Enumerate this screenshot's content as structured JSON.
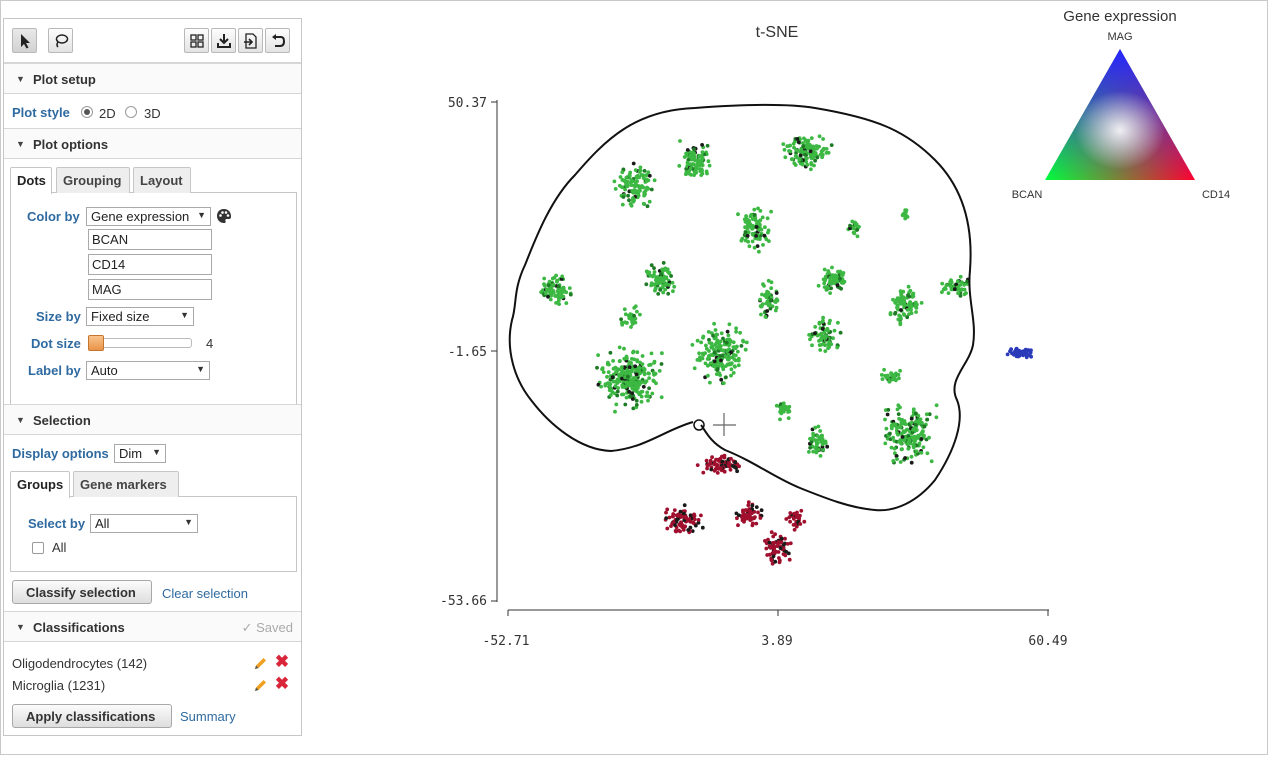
{
  "toolbar": {
    "left_tools": [
      {
        "name": "select-tool",
        "icon": "cursor-arrow-icon",
        "active": true
      },
      {
        "name": "lasso-tool",
        "icon": "lasso-icon",
        "active": false
      }
    ],
    "right_tools": [
      {
        "name": "grid-button",
        "icon": "grid-icon"
      },
      {
        "name": "download-button",
        "icon": "download-icon"
      },
      {
        "name": "export-button",
        "icon": "export-icon"
      },
      {
        "name": "undo-button",
        "icon": "undo-icon"
      }
    ]
  },
  "plot_setup": {
    "title": "Plot setup",
    "style_label": "Plot style",
    "options": [
      "2D",
      "3D"
    ],
    "selected": "2D"
  },
  "plot_options": {
    "title": "Plot options",
    "tabs": [
      "Dots",
      "Grouping",
      "Layout"
    ],
    "active_tab": "Dots",
    "color_by_label": "Color by",
    "color_by_value": "Gene expression",
    "genes": [
      "BCAN",
      "CD14",
      "MAG"
    ],
    "size_by_label": "Size by",
    "size_by_value": "Fixed size",
    "dot_size_label": "Dot size",
    "dot_size_value": "4",
    "label_by_label": "Label by",
    "label_by_value": "Auto"
  },
  "selection": {
    "title": "Selection",
    "display_options_label": "Display options",
    "display_options_value": "Dim",
    "tabs": [
      "Groups",
      "Gene markers"
    ],
    "active_tab": "Groups",
    "select_by_label": "Select by",
    "select_by_value": "All",
    "all_checkbox_label": "All",
    "all_checked": false,
    "classify_button": "Classify selection",
    "clear_link": "Clear selection"
  },
  "classifications": {
    "title": "Classifications",
    "saved_status": "✓ Saved",
    "items": [
      "Oligodendrocytes (142)",
      "Microglia (1231)"
    ],
    "apply_button": "Apply classifications",
    "summary_link": "Summary"
  },
  "plot": {
    "title": "t-SNE",
    "y_ticks": [
      "50.37",
      "-1.65",
      "-53.66"
    ],
    "x_ticks": [
      "-52.71",
      "3.89",
      "60.49"
    ],
    "colors": {
      "green_main": "#3cb843",
      "green_dark": "#1f7a26",
      "red_main": "#a0102e",
      "blue_main": "#2a3ab8",
      "dark": "#1a1a1a"
    }
  },
  "legend": {
    "title": "Gene expression",
    "top_label": "MAG",
    "left_label": "BCAN",
    "right_label": "CD14"
  }
}
